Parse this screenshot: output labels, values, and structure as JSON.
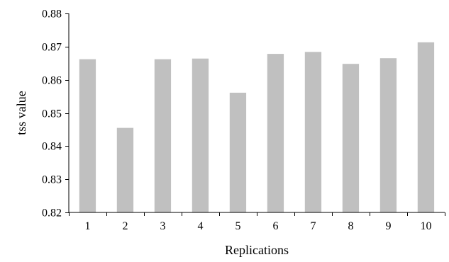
{
  "chart_data": {
    "type": "bar",
    "title": "",
    "xlabel": "Replications",
    "ylabel": "tss value",
    "categories": [
      "1",
      "2",
      "3",
      "4",
      "5",
      "6",
      "7",
      "8",
      "9",
      "10"
    ],
    "values": [
      0.8662,
      0.8455,
      0.8662,
      0.8664,
      0.8561,
      0.8678,
      0.8684,
      0.8648,
      0.8665,
      0.8713
    ],
    "ylim": [
      0.82,
      0.88
    ],
    "yticks": [
      "0.82",
      "0.83",
      "0.84",
      "0.85",
      "0.86",
      "0.87",
      "0.88"
    ],
    "grid": false,
    "legend": "none",
    "bar_color": "#c0c0c0",
    "axis_color": "#000000"
  }
}
